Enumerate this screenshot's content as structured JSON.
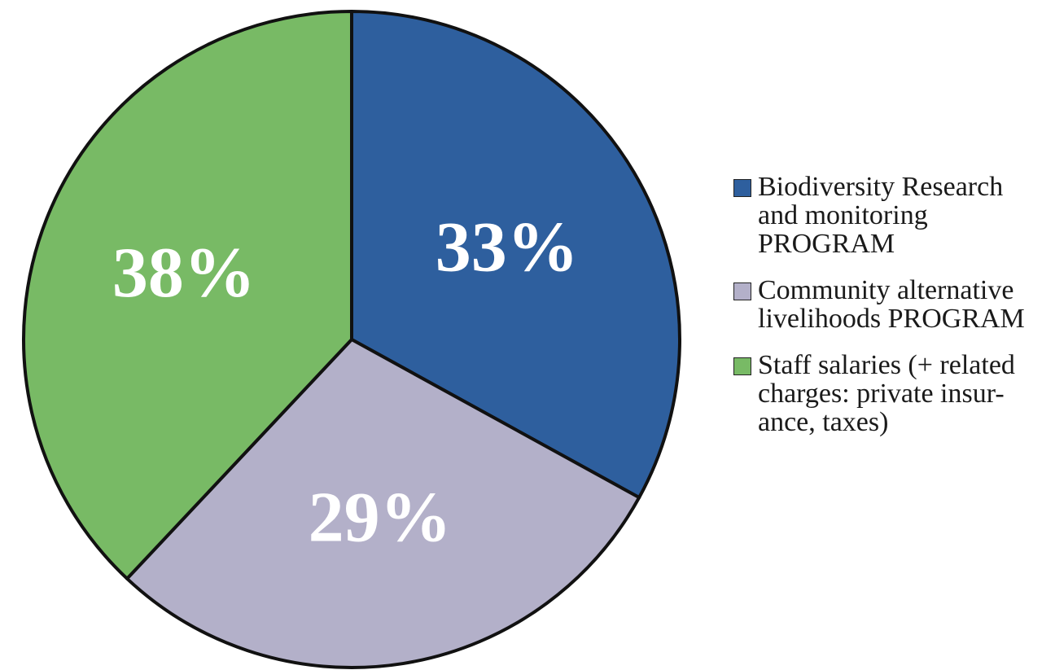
{
  "chart_data": {
    "type": "pie",
    "slices": [
      {
        "label": "Biodiversity Research and monitoring PROGRAM",
        "value": 33,
        "display": "33%",
        "color": "#2e5f9e",
        "text_color": "#ffffff"
      },
      {
        "label": "Community alternative livelihoods PROGRAM",
        "value": 29,
        "display": "29%",
        "color": "#b3b0c9",
        "text_color": "#ffffff"
      },
      {
        "label": "Staff salaries (+ related charges: private insurance, taxes)",
        "value": 38,
        "display": "38%",
        "color": "#78ba65",
        "text_color": "#ffffff"
      }
    ],
    "legend_position": "right",
    "legend": [
      {
        "lines": [
          "Biodiversity Research",
          "and monitoring",
          "PROGRAM"
        ]
      },
      {
        "lines": [
          "Community alternative",
          "livelihoods PROGRAM"
        ]
      },
      {
        "lines": [
          "Staff salaries (+ related",
          "charges: private insur-",
          "ance, taxes)"
        ]
      }
    ]
  }
}
